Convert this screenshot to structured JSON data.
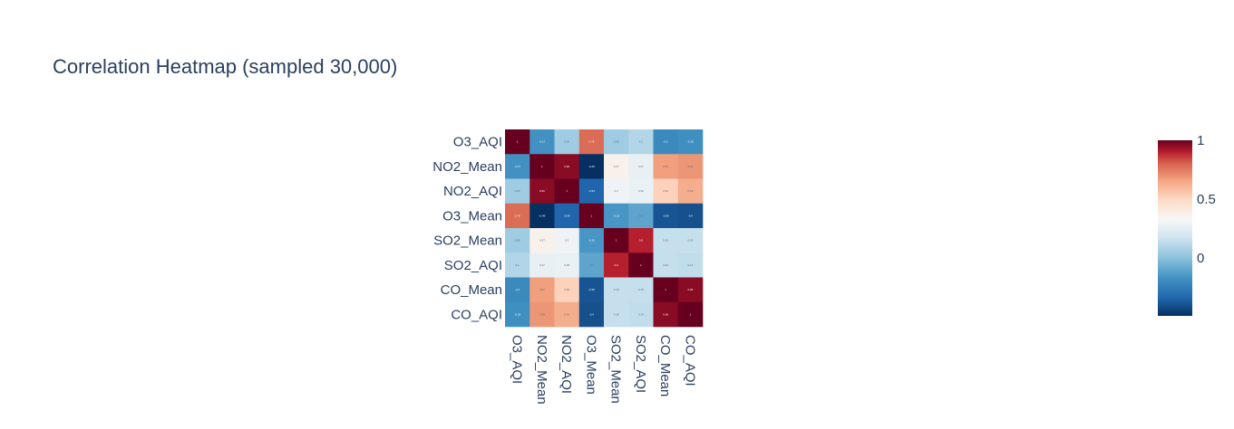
{
  "chart_data": {
    "type": "heatmap",
    "title": "Correlation Heatmap (sampled 30,000)",
    "x": [
      "O3_AQI",
      "NO2_Mean",
      "NO2_AQI",
      "O3_Mean",
      "SO2_Mean",
      "SO2_AQI",
      "CO_Mean",
      "CO_AQI"
    ],
    "y": [
      "O3_AQI",
      "NO2_Mean",
      "NO2_AQI",
      "O3_Mean",
      "SO2_Mean",
      "SO2_AQI",
      "CO_Mean",
      "CO_AQI"
    ],
    "z": [
      [
        1,
        -0.17,
        0.05,
        0.78,
        0.05,
        0.1,
        -0.2,
        -0.18
      ],
      [
        -0.17,
        1,
        0.96,
        -0.49,
        0.37,
        0.27,
        0.67,
        0.69
      ],
      [
        0.05,
        0.96,
        1,
        -0.34,
        0.3,
        0.28,
        0.52,
        0.63
      ],
      [
        0.78,
        -0.49,
        -0.34,
        1,
        -0.15,
        -0.1,
        -0.39,
        -0.4
      ],
      [
        0.05,
        0.37,
        0.3,
        -0.15,
        1,
        0.9,
        0.15,
        0.15
      ],
      [
        0.1,
        0.27,
        0.28,
        -0.1,
        0.9,
        1,
        0.15,
        0.14
      ],
      [
        -0.2,
        0.67,
        0.52,
        -0.39,
        0.15,
        0.15,
        1,
        0.96
      ],
      [
        -0.18,
        0.69,
        0.63,
        -0.4,
        0.15,
        0.14,
        0.96,
        1
      ]
    ],
    "zmin": -0.49,
    "zmax": 1,
    "colorscale": "RdBu",
    "colorbar": {
      "ticks": [
        "1",
        "0.5",
        "0"
      ],
      "tick_values": [
        1,
        0.5,
        0
      ]
    },
    "grid": false,
    "legend": "right"
  }
}
